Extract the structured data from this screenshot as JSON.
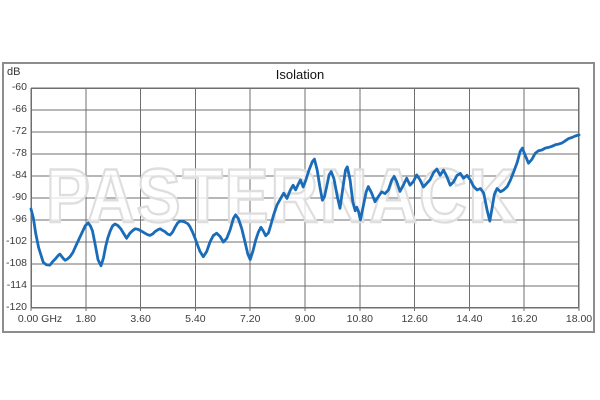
{
  "chart_data": {
    "type": "line",
    "title": "Isolation",
    "ylabel": "dB",
    "xlabel": "",
    "x_unit": "GHz",
    "xlim": [
      0,
      18
    ],
    "ylim": [
      -120,
      -60
    ],
    "grid": true,
    "legend": "none",
    "watermark": "PASTERNACK",
    "line_color": "#1b6cb8",
    "grid_color": "#6f6f6f",
    "watermark_stroke_color": "#dedede",
    "x_ticks": [
      0,
      1.8,
      3.6,
      5.4,
      7.2,
      9.0,
      10.8,
      12.6,
      14.4,
      16.2,
      18.0
    ],
    "x_tick_labels": [
      "0.00 GHz",
      "1.80",
      "3.60",
      "5.40",
      "7.20",
      "9.00",
      "10.80",
      "12.60",
      "14.40",
      "16.20",
      "18.00"
    ],
    "y_ticks": [
      -60,
      -66,
      -72,
      -78,
      -84,
      -90,
      -96,
      -102,
      -108,
      -114,
      -120
    ],
    "y_tick_labels": [
      "-60",
      "-66",
      "-72",
      "-78",
      "-84",
      "-90",
      "-96",
      "-102",
      "-108",
      "-114",
      "-120"
    ],
    "series": [
      {
        "name": "Isolation",
        "points": [
          [
            0.0,
            -93.0
          ],
          [
            0.08,
            -95.5
          ],
          [
            0.15,
            -99.5
          ],
          [
            0.25,
            -103.5
          ],
          [
            0.4,
            -107.5
          ],
          [
            0.5,
            -108.2
          ],
          [
            0.62,
            -108.3
          ],
          [
            0.72,
            -107.3
          ],
          [
            0.8,
            -106.6
          ],
          [
            0.9,
            -105.6
          ],
          [
            0.95,
            -105.3
          ],
          [
            1.05,
            -106.4
          ],
          [
            1.12,
            -107.0
          ],
          [
            1.2,
            -106.6
          ],
          [
            1.28,
            -106.0
          ],
          [
            1.38,
            -104.8
          ],
          [
            1.45,
            -103.5
          ],
          [
            1.6,
            -100.8
          ],
          [
            1.7,
            -99.0
          ],
          [
            1.78,
            -97.6
          ],
          [
            1.88,
            -96.8
          ],
          [
            1.95,
            -97.6
          ],
          [
            2.02,
            -99.0
          ],
          [
            2.1,
            -102.3
          ],
          [
            2.2,
            -106.8
          ],
          [
            2.3,
            -108.5
          ],
          [
            2.38,
            -106.3
          ],
          [
            2.45,
            -103.3
          ],
          [
            2.52,
            -101.0
          ],
          [
            2.6,
            -99.0
          ],
          [
            2.68,
            -97.6
          ],
          [
            2.76,
            -97.1
          ],
          [
            2.85,
            -97.5
          ],
          [
            2.95,
            -98.4
          ],
          [
            3.05,
            -99.8
          ],
          [
            3.14,
            -101.0
          ],
          [
            3.25,
            -99.6
          ],
          [
            3.35,
            -98.8
          ],
          [
            3.42,
            -98.4
          ],
          [
            3.5,
            -98.5
          ],
          [
            3.58,
            -98.8
          ],
          [
            3.66,
            -99.2
          ],
          [
            3.74,
            -99.6
          ],
          [
            3.83,
            -100.0
          ],
          [
            3.91,
            -100.2
          ],
          [
            4.0,
            -99.8
          ],
          [
            4.07,
            -99.2
          ],
          [
            4.16,
            -98.7
          ],
          [
            4.24,
            -98.4
          ],
          [
            4.32,
            -98.8
          ],
          [
            4.4,
            -99.2
          ],
          [
            4.48,
            -99.8
          ],
          [
            4.57,
            -100.1
          ],
          [
            4.65,
            -99.3
          ],
          [
            4.73,
            -98.0
          ],
          [
            4.82,
            -96.8
          ],
          [
            4.9,
            -96.3
          ],
          [
            5.0,
            -96.4
          ],
          [
            5.06,
            -96.6
          ],
          [
            5.15,
            -97.0
          ],
          [
            5.22,
            -97.8
          ],
          [
            5.3,
            -99.2
          ],
          [
            5.39,
            -101.0
          ],
          [
            5.48,
            -103.0
          ],
          [
            5.55,
            -104.6
          ],
          [
            5.66,
            -106.0
          ],
          [
            5.77,
            -104.6
          ],
          [
            5.88,
            -102.0
          ],
          [
            5.99,
            -100.2
          ],
          [
            6.1,
            -99.6
          ],
          [
            6.21,
            -100.5
          ],
          [
            6.32,
            -102.0
          ],
          [
            6.43,
            -101.0
          ],
          [
            6.54,
            -98.7
          ],
          [
            6.65,
            -95.5
          ],
          [
            6.72,
            -94.6
          ],
          [
            6.81,
            -95.6
          ],
          [
            6.92,
            -98.3
          ],
          [
            7.03,
            -102.0
          ],
          [
            7.12,
            -105.3
          ],
          [
            7.2,
            -106.8
          ],
          [
            7.29,
            -104.5
          ],
          [
            7.38,
            -101.5
          ],
          [
            7.47,
            -99.3
          ],
          [
            7.55,
            -98.0
          ],
          [
            7.63,
            -99.0
          ],
          [
            7.71,
            -100.3
          ],
          [
            7.8,
            -99.5
          ],
          [
            7.88,
            -97.3
          ],
          [
            7.97,
            -94.6
          ],
          [
            8.08,
            -91.9
          ],
          [
            8.19,
            -90.3
          ],
          [
            8.3,
            -88.7
          ],
          [
            8.41,
            -90.1
          ],
          [
            8.52,
            -87.8
          ],
          [
            8.61,
            -86.5
          ],
          [
            8.69,
            -87.8
          ],
          [
            8.77,
            -86.4
          ],
          [
            8.85,
            -85.1
          ],
          [
            8.94,
            -87.0
          ],
          [
            9.02,
            -85.3
          ],
          [
            9.13,
            -82.4
          ],
          [
            9.24,
            -80.1
          ],
          [
            9.31,
            -79.4
          ],
          [
            9.4,
            -82.4
          ],
          [
            9.49,
            -87.0
          ],
          [
            9.57,
            -90.6
          ],
          [
            9.64,
            -89.6
          ],
          [
            9.71,
            -87.0
          ],
          [
            9.79,
            -83.7
          ],
          [
            9.86,
            -82.8
          ],
          [
            9.95,
            -84.7
          ],
          [
            10.06,
            -89.6
          ],
          [
            10.15,
            -92.8
          ],
          [
            10.24,
            -87.4
          ],
          [
            10.33,
            -82.4
          ],
          [
            10.39,
            -81.5
          ],
          [
            10.48,
            -85.1
          ],
          [
            10.57,
            -91.0
          ],
          [
            10.65,
            -93.5
          ],
          [
            10.7,
            -92.5
          ],
          [
            10.76,
            -93.8
          ],
          [
            10.82,
            -96.0
          ],
          [
            10.92,
            -91.9
          ],
          [
            11.01,
            -88.3
          ],
          [
            11.08,
            -86.9
          ],
          [
            11.19,
            -88.7
          ],
          [
            11.3,
            -91.0
          ],
          [
            11.41,
            -89.6
          ],
          [
            11.52,
            -88.3
          ],
          [
            11.63,
            -88.8
          ],
          [
            11.74,
            -87.8
          ],
          [
            11.85,
            -85.1
          ],
          [
            11.93,
            -84.1
          ],
          [
            12.01,
            -85.5
          ],
          [
            12.12,
            -88.2
          ],
          [
            12.23,
            -86.5
          ],
          [
            12.34,
            -84.6
          ],
          [
            12.45,
            -86.5
          ],
          [
            12.56,
            -85.5
          ],
          [
            12.67,
            -83.7
          ],
          [
            12.78,
            -85.1
          ],
          [
            12.89,
            -87.0
          ],
          [
            13.0,
            -86.0
          ],
          [
            13.11,
            -85.0
          ],
          [
            13.22,
            -83.1
          ],
          [
            13.33,
            -82.1
          ],
          [
            13.44,
            -83.8
          ],
          [
            13.55,
            -82.4
          ],
          [
            13.66,
            -84.2
          ],
          [
            13.77,
            -86.5
          ],
          [
            13.88,
            -85.6
          ],
          [
            13.99,
            -83.9
          ],
          [
            14.1,
            -83.3
          ],
          [
            14.21,
            -84.6
          ],
          [
            14.32,
            -83.8
          ],
          [
            14.43,
            -85.1
          ],
          [
            14.54,
            -86.9
          ],
          [
            14.65,
            -87.8
          ],
          [
            14.76,
            -87.4
          ],
          [
            14.87,
            -88.7
          ],
          [
            14.98,
            -93.3
          ],
          [
            15.07,
            -96.3
          ],
          [
            15.14,
            -93.0
          ],
          [
            15.22,
            -89.0
          ],
          [
            15.31,
            -87.4
          ],
          [
            15.42,
            -88.3
          ],
          [
            15.53,
            -87.8
          ],
          [
            15.64,
            -86.9
          ],
          [
            15.75,
            -85.1
          ],
          [
            15.86,
            -82.8
          ],
          [
            15.97,
            -80.3
          ],
          [
            16.07,
            -77.3
          ],
          [
            16.14,
            -76.4
          ],
          [
            16.23,
            -78.3
          ],
          [
            16.34,
            -80.5
          ],
          [
            16.45,
            -79.5
          ],
          [
            16.56,
            -77.8
          ],
          [
            16.67,
            -77.1
          ],
          [
            16.78,
            -76.9
          ],
          [
            16.89,
            -76.4
          ],
          [
            17.0,
            -76.2
          ],
          [
            17.11,
            -75.9
          ],
          [
            17.22,
            -75.5
          ],
          [
            17.33,
            -75.3
          ],
          [
            17.44,
            -75.0
          ],
          [
            17.55,
            -74.4
          ],
          [
            17.66,
            -73.8
          ],
          [
            17.77,
            -73.5
          ],
          [
            17.88,
            -73.1
          ],
          [
            18.0,
            -72.8
          ]
        ]
      }
    ]
  }
}
